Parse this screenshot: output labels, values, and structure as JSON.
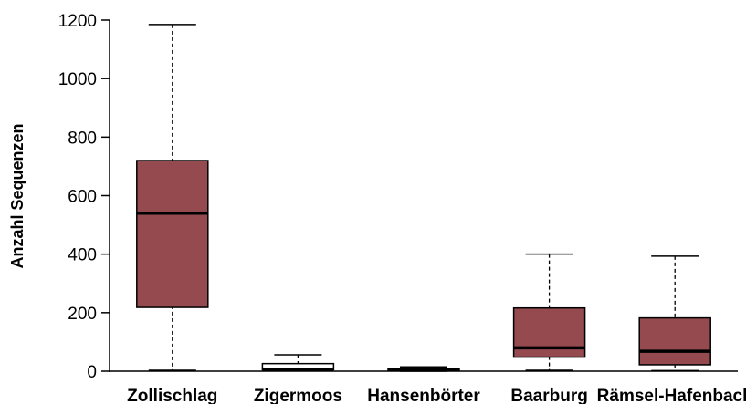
{
  "chart_data": {
    "type": "boxplot",
    "title": "",
    "xlabel": "",
    "ylabel": "Anzahl Sequenzen",
    "ylim": [
      0,
      1200
    ],
    "yticks": [
      0,
      200,
      400,
      600,
      800,
      1000,
      1200
    ],
    "grid": false,
    "categories": [
      "Zollischlag",
      "Zigermoos",
      "Hansenbörter",
      "Baarburg",
      "Rämsel-Hafenbach"
    ],
    "boxes": [
      {
        "category": "Zollischlag",
        "min": 3,
        "q1": 218,
        "median": 540,
        "q3": 720,
        "max": 1185,
        "fill": "#954a50"
      },
      {
        "category": "Zigermoos",
        "min": 2,
        "q1": 5,
        "median": 6,
        "q3": 26,
        "max": 56,
        "fill": "#ffffff"
      },
      {
        "category": "Hansenbörter",
        "min": 0,
        "q1": 2,
        "median": 5,
        "q3": 9,
        "max": 15,
        "fill": "#ffffff"
      },
      {
        "category": "Baarburg",
        "min": 3,
        "q1": 48,
        "median": 80,
        "q3": 216,
        "max": 400,
        "fill": "#954a50"
      },
      {
        "category": "Rämsel-Hafenbach",
        "min": 2,
        "q1": 22,
        "median": 68,
        "q3": 182,
        "max": 393,
        "fill": "#954a50"
      }
    ]
  }
}
